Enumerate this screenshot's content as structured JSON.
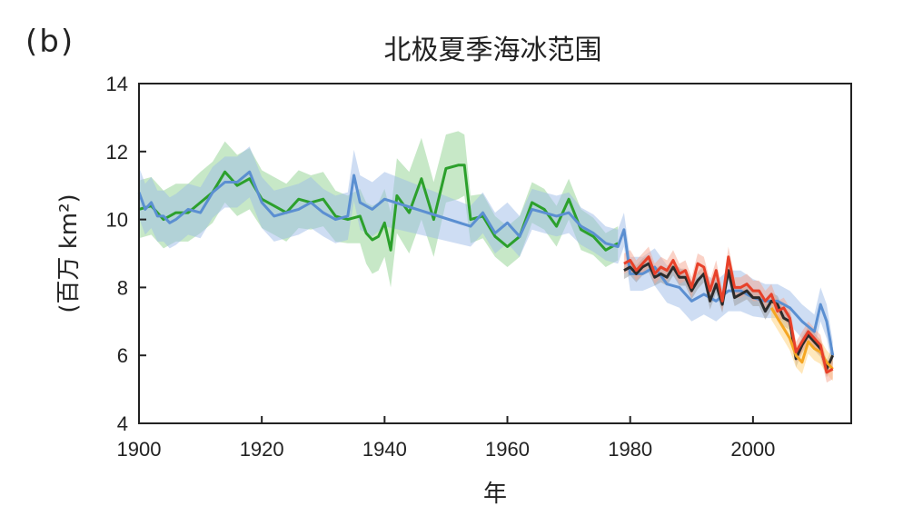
{
  "panel_label": "(b)",
  "chart_data": {
    "type": "line",
    "title": "北极夏季海冰范围",
    "xlabel": "年",
    "ylabel": "(百万 km²)",
    "xlim": [
      1900,
      2016
    ],
    "ylim": [
      4,
      14
    ],
    "xticks": [
      1900,
      1920,
      1940,
      1960,
      1980,
      2000
    ],
    "yticks": [
      4,
      6,
      8,
      10,
      12,
      14
    ],
    "grid": false,
    "legend": "none",
    "series": [
      {
        "color": "#2ca02c",
        "band_color": "#8fd18f",
        "x": [
          1900,
          1902,
          1904,
          1906,
          1908,
          1910,
          1912,
          1914,
          1916,
          1918,
          1920,
          1922,
          1924,
          1926,
          1928,
          1930,
          1932,
          1934,
          1936,
          1937,
          1938,
          1939,
          1940,
          1941,
          1942,
          1944,
          1946,
          1948,
          1950,
          1952,
          1953,
          1954,
          1956,
          1958,
          1960,
          1962,
          1964,
          1966,
          1968,
          1970,
          1972,
          1974,
          1976,
          1978
        ],
        "y": [
          10.3,
          10.4,
          10.0,
          10.2,
          10.2,
          10.5,
          10.8,
          11.4,
          11.0,
          11.2,
          10.6,
          10.4,
          10.2,
          10.6,
          10.5,
          10.6,
          10.1,
          10.0,
          10.1,
          9.6,
          9.4,
          9.5,
          9.9,
          9.1,
          10.7,
          10.2,
          11.2,
          10.0,
          11.5,
          11.6,
          11.6,
          10.0,
          10.1,
          9.5,
          9.2,
          9.5,
          10.5,
          10.3,
          9.8,
          10.6,
          9.7,
          9.5,
          9.1,
          9.3
        ],
        "band": [
          0.85,
          0.85,
          0.85,
          0.85,
          0.85,
          0.9,
          0.9,
          0.9,
          0.9,
          0.9,
          0.85,
          0.85,
          0.85,
          0.85,
          0.8,
          0.8,
          0.75,
          0.7,
          0.8,
          0.9,
          1.0,
          1.0,
          1.0,
          1.1,
          1.1,
          1.2,
          1.2,
          1.1,
          1.0,
          1.0,
          0.9,
          0.7,
          0.65,
          0.6,
          0.6,
          0.6,
          0.6,
          0.6,
          0.6,
          0.6,
          0.6,
          0.55,
          0.5,
          0.5
        ]
      },
      {
        "color": "#5b8fd1",
        "band_color": "#9dbbe8",
        "x": [
          1900,
          1901,
          1902,
          1903,
          1904,
          1905,
          1906,
          1908,
          1910,
          1912,
          1914,
          1916,
          1918,
          1920,
          1922,
          1924,
          1926,
          1928,
          1930,
          1932,
          1934,
          1935,
          1936,
          1938,
          1940,
          1954,
          1956,
          1958,
          1960,
          1962,
          1964,
          1966,
          1968,
          1970,
          1972,
          1974,
          1976,
          1978,
          1979,
          1980,
          1982,
          1984,
          1986,
          1988,
          1990,
          1992,
          1994,
          1996,
          1998,
          2000,
          2002,
          2004,
          2006,
          2008,
          2010,
          2011,
          2012,
          2013
        ],
        "y": [
          10.8,
          10.3,
          10.5,
          10.1,
          10.1,
          9.9,
          10.0,
          10.3,
          10.2,
          10.8,
          11.1,
          11.1,
          11.4,
          10.5,
          10.1,
          10.2,
          10.3,
          10.5,
          10.2,
          10.0,
          10.1,
          11.3,
          10.5,
          10.3,
          10.6,
          9.8,
          10.2,
          9.6,
          9.9,
          9.5,
          10.3,
          10.2,
          10.1,
          10.2,
          9.8,
          9.6,
          9.3,
          9.2,
          9.7,
          8.4,
          8.4,
          8.6,
          8.1,
          8.0,
          7.6,
          7.8,
          7.6,
          7.9,
          7.9,
          7.7,
          7.6,
          7.6,
          7.4,
          7.0,
          6.7,
          7.5,
          7.0,
          6.0
        ],
        "band": [
          0.75,
          0.75,
          0.75,
          0.75,
          0.75,
          0.75,
          0.75,
          0.75,
          0.75,
          0.75,
          0.75,
          0.75,
          0.75,
          0.75,
          0.75,
          0.75,
          0.75,
          0.75,
          0.7,
          0.7,
          0.7,
          0.75,
          0.8,
          0.8,
          0.8,
          0.6,
          0.6,
          0.6,
          0.6,
          0.6,
          0.6,
          0.6,
          0.6,
          0.6,
          0.55,
          0.55,
          0.5,
          0.5,
          0.5,
          0.5,
          0.5,
          0.55,
          0.55,
          0.6,
          0.6,
          0.6,
          0.6,
          0.6,
          0.6,
          0.55,
          0.5,
          0.5,
          0.5,
          0.5,
          0.5,
          0.5,
          0.5,
          0.4
        ]
      },
      {
        "color": "#2b2b2b",
        "band_color": "#9a9a9a",
        "x": [
          1979,
          1980,
          1981,
          1982,
          1983,
          1984,
          1985,
          1986,
          1987,
          1988,
          1989,
          1990,
          1991,
          1992,
          1993,
          1994,
          1995,
          1996,
          1997,
          1998,
          1999,
          2000,
          2001,
          2002,
          2003,
          2004,
          2005,
          2006,
          2007,
          2008,
          2009,
          2010,
          2011,
          2012,
          2013
        ],
        "y": [
          8.5,
          8.6,
          8.4,
          8.6,
          8.7,
          8.3,
          8.4,
          8.3,
          8.6,
          8.3,
          8.3,
          7.9,
          8.2,
          8.4,
          7.6,
          8.1,
          7.5,
          8.5,
          7.7,
          7.8,
          7.9,
          7.7,
          7.7,
          7.3,
          7.6,
          7.5,
          7.1,
          7.0,
          5.9,
          6.3,
          6.6,
          6.4,
          6.2,
          5.6,
          6.0
        ],
        "band": [
          0.25,
          0.25,
          0.25,
          0.25,
          0.25,
          0.25,
          0.25,
          0.25,
          0.25,
          0.25,
          0.25,
          0.25,
          0.25,
          0.25,
          0.25,
          0.25,
          0.25,
          0.25,
          0.25,
          0.25,
          0.25,
          0.25,
          0.25,
          0.25,
          0.25,
          0.25,
          0.25,
          0.25,
          0.25,
          0.25,
          0.25,
          0.25,
          0.25,
          0.25,
          0.25
        ]
      },
      {
        "color": "#f5a623",
        "band_color": "#ffd27a",
        "x": [
          2003,
          2004,
          2005,
          2006,
          2007,
          2008,
          2009,
          2010,
          2011,
          2012,
          2013
        ],
        "y": [
          7.4,
          7.1,
          6.8,
          6.5,
          6.0,
          5.8,
          6.4,
          6.2,
          6.1,
          5.8,
          5.6
        ],
        "band": [
          0.35,
          0.35,
          0.35,
          0.35,
          0.35,
          0.35,
          0.35,
          0.35,
          0.35,
          0.35,
          0.35
        ]
      },
      {
        "color": "#e8412a",
        "band_color": "#f5a58f",
        "x": [
          1979,
          1980,
          1981,
          1982,
          1983,
          1984,
          1985,
          1986,
          1987,
          1988,
          1989,
          1990,
          1991,
          1992,
          1993,
          1994,
          1995,
          1996,
          1997,
          1998,
          1999,
          2000,
          2001,
          2002,
          2003,
          2004,
          2005,
          2006,
          2007,
          2008,
          2009,
          2010,
          2011,
          2012,
          2013
        ],
        "y": [
          8.7,
          8.8,
          8.5,
          8.7,
          8.9,
          8.4,
          8.6,
          8.5,
          8.8,
          8.4,
          8.5,
          8.0,
          8.7,
          8.6,
          7.9,
          8.5,
          7.6,
          8.9,
          8.0,
          8.0,
          8.1,
          7.9,
          7.9,
          7.6,
          7.8,
          7.3,
          7.4,
          7.1,
          6.1,
          6.4,
          6.7,
          6.5,
          6.3,
          5.5,
          5.6
        ],
        "band": [
          0.3,
          0.3,
          0.3,
          0.3,
          0.3,
          0.3,
          0.3,
          0.3,
          0.3,
          0.3,
          0.3,
          0.3,
          0.3,
          0.3,
          0.3,
          0.3,
          0.3,
          0.3,
          0.3,
          0.3,
          0.3,
          0.3,
          0.3,
          0.3,
          0.3,
          0.3,
          0.3,
          0.3,
          0.3,
          0.3,
          0.3,
          0.3,
          0.3,
          0.3,
          0.3
        ]
      }
    ]
  }
}
